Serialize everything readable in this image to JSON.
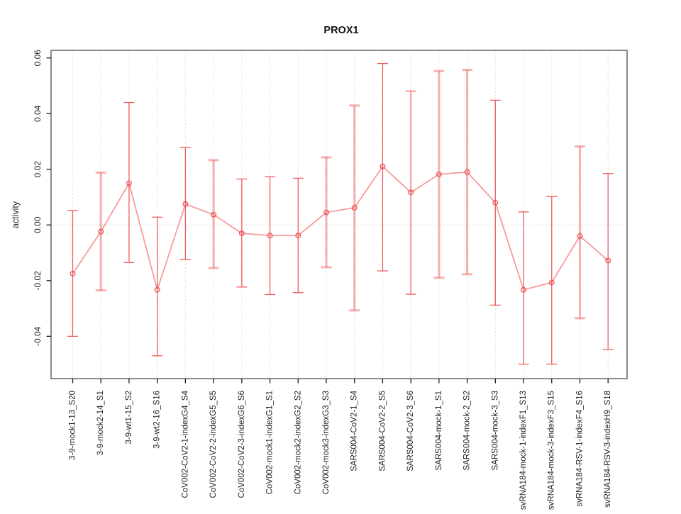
{
  "colors": {
    "series_red": "#ed5151",
    "thick_bar_pink": "#ed5151",
    "connect_line": "#ef5a5a",
    "gridline_grey": "#d4d4d4",
    "zero_line_grey": "#cfcfcf",
    "plot_border_grey": "#757575",
    "tick_black": "#1a1a1a",
    "text_black": "#1f1f1f",
    "background": "#ffffff"
  },
  "chart_data": {
    "type": "line",
    "title": "PROX1",
    "xlabel": "",
    "ylabel": "activity",
    "legend": "none",
    "grid": "vertical dotted gridline at every category; horizontal dotted line at y=0 only",
    "ylim": [
      -0.0552,
      0.0627
    ],
    "yticks": [
      -0.04,
      -0.02,
      0.0,
      0.02,
      0.04,
      0.06
    ],
    "ytick_labels": [
      "-0.04",
      "-0.02",
      "0.00",
      "0.02",
      "0.04",
      "0.06"
    ],
    "marker": "open-circle",
    "categories": [
      "3-9-mock1-13_S20",
      "3-9-mock2-14_S1",
      "3-9-wt1-15_S2",
      "3-9-wt2-16_S16",
      "CoV002-CoV2-1-indexG4_S4",
      "CoV002-CoV2-2-indexG5_S5",
      "CoV002-CoV2-3-indexG6_S6",
      "CoV002-mock1-indexG1_S1",
      "CoV002-mock2-indexG2_S2",
      "CoV002-mock3-indexG3_S3",
      "SARS004-CoV2-1_S4",
      "SARS004-CoV2-2_S5",
      "SARS004-CoV2-3_S6",
      "SARS004-mock-1_S1",
      "SARS004-mock-2_S2",
      "SARS004-mock-3_S3",
      "svRNA184-mock-1-indexF1_S13",
      "svRNA184-mock-3-indexF3_S15",
      "svRNA184-RSV-1-indexF4_S16",
      "svRNA184-RSV-3-indexH9_S18"
    ],
    "series": [
      {
        "name": "activity",
        "values": [
          -0.0175,
          -0.0024,
          0.015,
          -0.0233,
          0.0075,
          0.0037,
          -0.003,
          -0.0038,
          -0.0038,
          0.0045,
          0.0062,
          0.021,
          0.0117,
          0.0182,
          0.019,
          0.008,
          -0.0233,
          -0.0207,
          -0.004,
          -0.0128
        ],
        "ci_upper": [
          0.0052,
          0.0188,
          0.044,
          0.0028,
          0.0278,
          0.0233,
          0.0165,
          0.0173,
          0.0168,
          0.0243,
          0.0429,
          0.058,
          0.0481,
          0.0553,
          0.0557,
          0.0448,
          0.0047,
          0.0102,
          0.0282,
          0.0185
        ],
        "ci_lower": [
          -0.04,
          -0.0235,
          -0.0135,
          -0.047,
          -0.0125,
          -0.0155,
          -0.0223,
          -0.025,
          -0.0243,
          -0.0152,
          -0.0307,
          -0.0165,
          -0.0249,
          -0.019,
          -0.0177,
          -0.0288,
          -0.05,
          -0.05,
          -0.0335,
          -0.0447
        ],
        "bar_style": [
          "thin",
          "thick",
          "thin",
          "thin",
          "thin",
          "thick",
          "thin",
          "thin",
          "thin",
          "thick",
          "thick",
          "thin",
          "thin",
          "thick",
          "thick",
          "thin",
          "thin",
          "thin",
          "thick",
          "thin"
        ]
      }
    ]
  }
}
